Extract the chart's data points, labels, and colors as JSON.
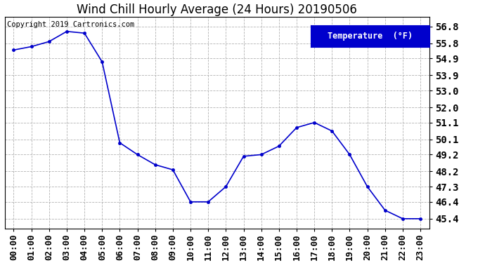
{
  "title": "Wind Chill Hourly Average (24 Hours) 20190506",
  "copyright": "Copyright 2019 Cartronics.com",
  "legend_label": "Temperature  (°F)",
  "x_labels": [
    "00:00",
    "01:00",
    "02:00",
    "03:00",
    "04:00",
    "05:00",
    "06:00",
    "07:00",
    "08:00",
    "09:00",
    "10:00",
    "11:00",
    "12:00",
    "13:00",
    "14:00",
    "15:00",
    "16:00",
    "17:00",
    "18:00",
    "19:00",
    "20:00",
    "21:00",
    "22:00",
    "23:00"
  ],
  "y_values": [
    55.4,
    55.6,
    55.9,
    56.5,
    56.4,
    54.7,
    49.9,
    49.2,
    48.6,
    48.3,
    46.4,
    46.4,
    47.3,
    49.1,
    49.2,
    49.7,
    50.8,
    51.1,
    50.6,
    49.2,
    47.3,
    45.9,
    45.4,
    45.4
  ],
  "ylim_min": 44.8,
  "ylim_max": 57.35,
  "yticks": [
    45.4,
    46.4,
    47.3,
    48.2,
    49.2,
    50.1,
    51.1,
    52.0,
    53.0,
    53.9,
    54.9,
    55.8,
    56.8
  ],
  "line_color": "#0000cc",
  "marker_color": "#0000cc",
  "bg_color": "#ffffff",
  "grid_color": "#aaaaaa",
  "legend_bg": "#0000cc",
  "legend_text_color": "#ffffff",
  "title_fontsize": 12,
  "copyright_fontsize": 7.5,
  "tick_fontsize": 9,
  "ytick_fontsize": 10
}
